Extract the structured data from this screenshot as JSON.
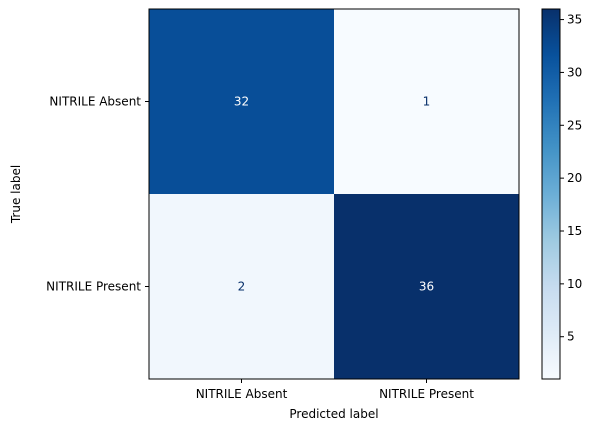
{
  "chart_data": {
    "type": "heatmap",
    "title": "",
    "xlabel": "Predicted label",
    "ylabel": "True label",
    "x_categories": [
      "NITRILE Absent",
      "NITRILE Present"
    ],
    "y_categories": [
      "NITRILE Absent",
      "NITRILE Present"
    ],
    "matrix": [
      [
        32,
        1
      ],
      [
        2,
        36
      ]
    ],
    "colormap": "Blues",
    "colorbar": {
      "min": 1,
      "max": 36,
      "ticks": [
        5,
        10,
        15,
        20,
        25,
        30,
        35
      ]
    },
    "grid": false
  }
}
